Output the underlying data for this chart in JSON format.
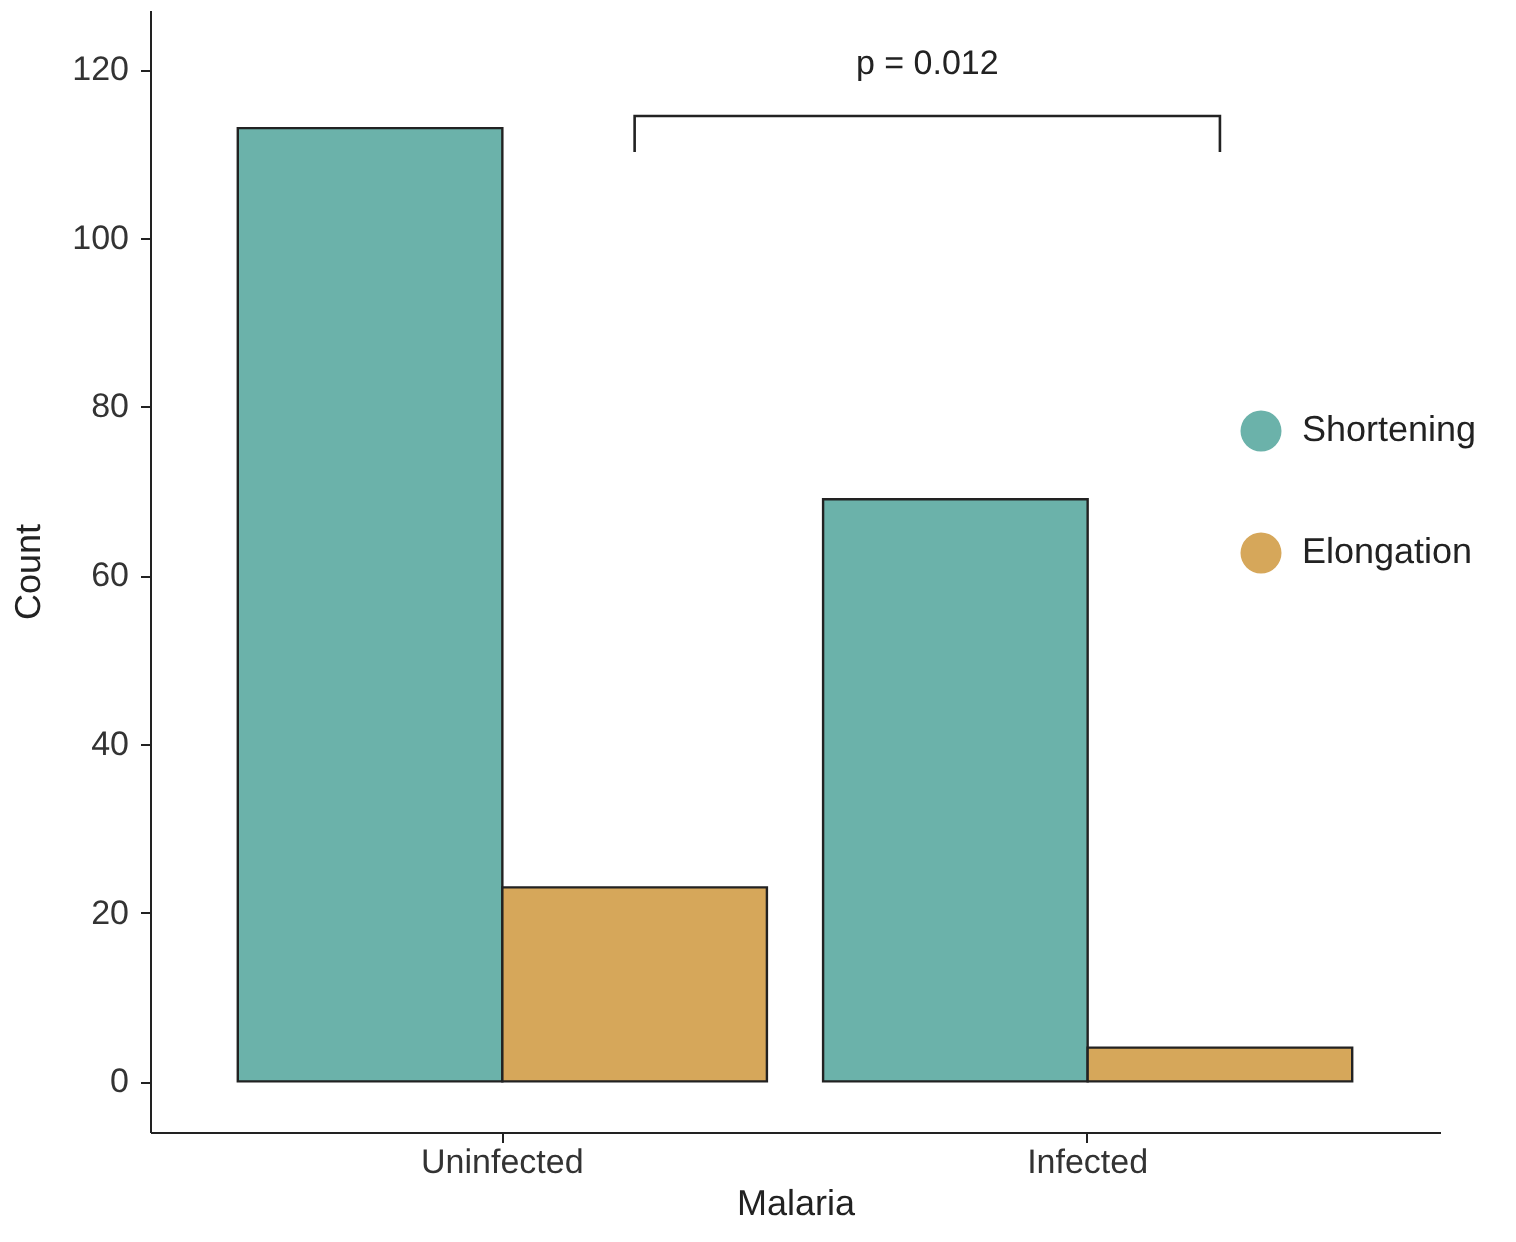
{
  "chart_data": {
    "type": "bar",
    "xlabel": "Malaria",
    "ylabel": "Count",
    "categories": [
      "Uninfected",
      "Infected"
    ],
    "series": [
      {
        "name": "Shortening",
        "color": "#6bb2aa",
        "values": [
          113,
          69
        ]
      },
      {
        "name": "Elongation",
        "color": "#d6a75a",
        "values": [
          23,
          4
        ]
      }
    ],
    "ylim": [
      -6,
      127
    ],
    "yticks": [
      0,
      20,
      40,
      60,
      80,
      100,
      120
    ],
    "grid": false,
    "legend": "right",
    "annotations": [
      "p = 0.012"
    ]
  }
}
